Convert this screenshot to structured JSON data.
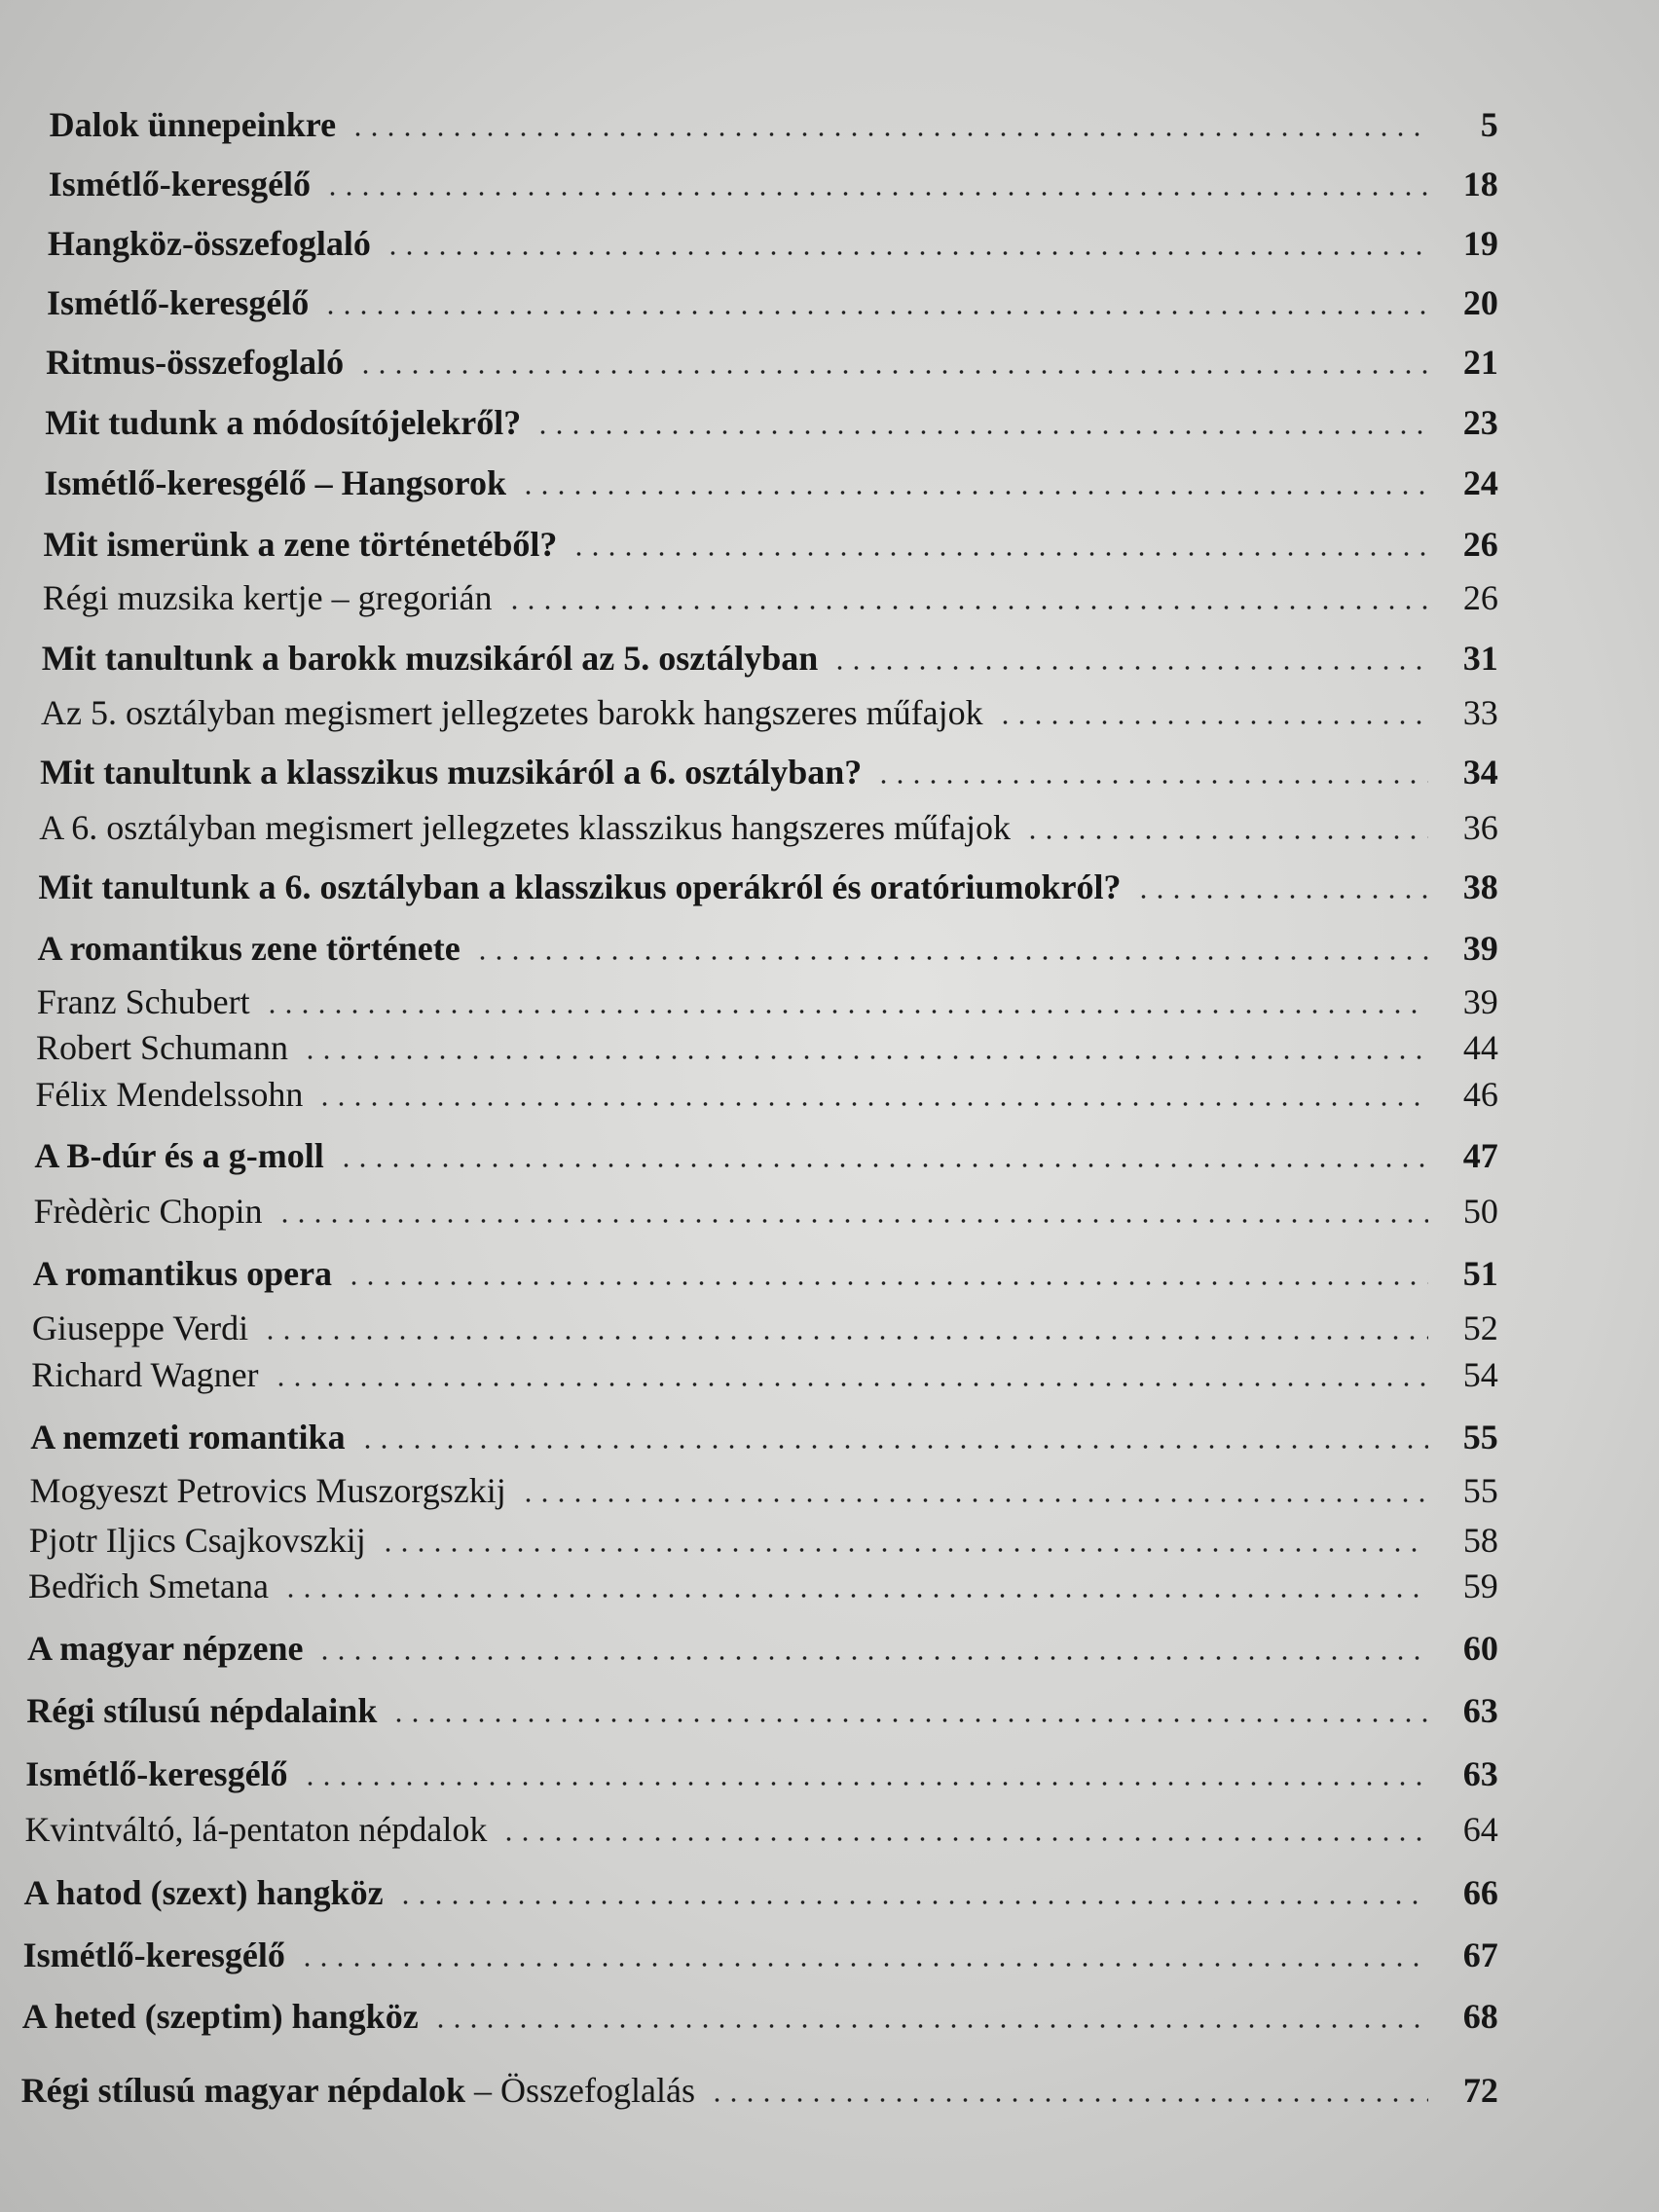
{
  "entries": [
    {
      "title": "Dalok ünnepeinkre",
      "page": 5,
      "bold": true
    },
    {
      "title": "Ismétlő-keresgélő",
      "page": 18,
      "bold": true
    },
    {
      "title": "Hangköz-összefoglaló",
      "page": 19,
      "bold": true
    },
    {
      "title": "Ismétlő-keresgélő",
      "page": 20,
      "bold": true
    },
    {
      "title": "Ritmus-összefoglaló",
      "page": 21,
      "bold": true
    },
    {
      "title": "Mit tudunk a módosítójelekről?",
      "page": 23,
      "bold": true
    },
    {
      "title": "Ismétlő-keresgélő – Hangsorok",
      "page": 24,
      "bold": true
    },
    {
      "title": "Mit ismerünk a zene történetéből?",
      "page": 26,
      "bold": true
    },
    {
      "title": "Régi muzsika kertje – gregorián",
      "page": 26,
      "bold": false
    },
    {
      "title": "Mit tanultunk a barokk muzsikáról az 5. osztályban",
      "page": 31,
      "bold": true
    },
    {
      "title": "Az 5. osztályban megismert jellegzetes barokk hangszeres műfajok",
      "page": 33,
      "bold": false
    },
    {
      "title": "Mit tanultunk a klasszikus muzsikáról a 6. osztályban?",
      "page": 34,
      "bold": true
    },
    {
      "title": "A 6. osztályban megismert jellegzetes klasszikus hangszeres műfajok",
      "page": 36,
      "bold": false
    },
    {
      "title": "Mit tanultunk a 6. osztályban a klasszikus operákról és oratóriumokról?",
      "page": 38,
      "bold": true
    },
    {
      "title": "A romantikus zene története",
      "page": 39,
      "bold": true
    },
    {
      "title": "Franz Schubert",
      "page": 39,
      "bold": false
    },
    {
      "title": "Robert Schumann",
      "page": 44,
      "bold": false
    },
    {
      "title": "Félix Mendelssohn",
      "page": 46,
      "bold": false
    },
    {
      "title": "A B-dúr és a g-moll",
      "page": 47,
      "bold": true
    },
    {
      "title": "Frèdèric Chopin",
      "page": 50,
      "bold": false
    },
    {
      "title": "A romantikus opera",
      "page": 51,
      "bold": true
    },
    {
      "title": "Giuseppe Verdi",
      "page": 52,
      "bold": false
    },
    {
      "title": "Richard Wagner",
      "page": 54,
      "bold": false
    },
    {
      "title": "A nemzeti romantika",
      "page": 55,
      "bold": true
    },
    {
      "title": "Mogyeszt Petrovics Muszorgszkij",
      "page": 55,
      "bold": false
    },
    {
      "title": "Pjotr Iljics Csajkovszkij",
      "page": 58,
      "bold": false
    },
    {
      "title": "Bedřich Smetana",
      "page": 59,
      "bold": false
    },
    {
      "title": "A magyar népzene",
      "page": 60,
      "bold": true
    },
    {
      "title": "Régi stílusú népdalaink",
      "page": 63,
      "bold": true
    },
    {
      "title": "Ismétlő-keresgélő",
      "page": 63,
      "bold": true
    },
    {
      "title": "Kvintváltó, lá-pentaton népdalok",
      "page": 64,
      "bold": false
    },
    {
      "title": "A hatod (szext) hangköz",
      "page": 66,
      "bold": true
    },
    {
      "title": "Ismétlő-keresgélő",
      "page": 67,
      "bold": true
    },
    {
      "title": "A heted (szeptim) hangköz",
      "page": 68,
      "bold": true
    },
    {
      "title": "Régi stílusú magyar népdalok",
      "subtitle": "– Összefoglalás",
      "page": 72,
      "bold": true
    }
  ]
}
